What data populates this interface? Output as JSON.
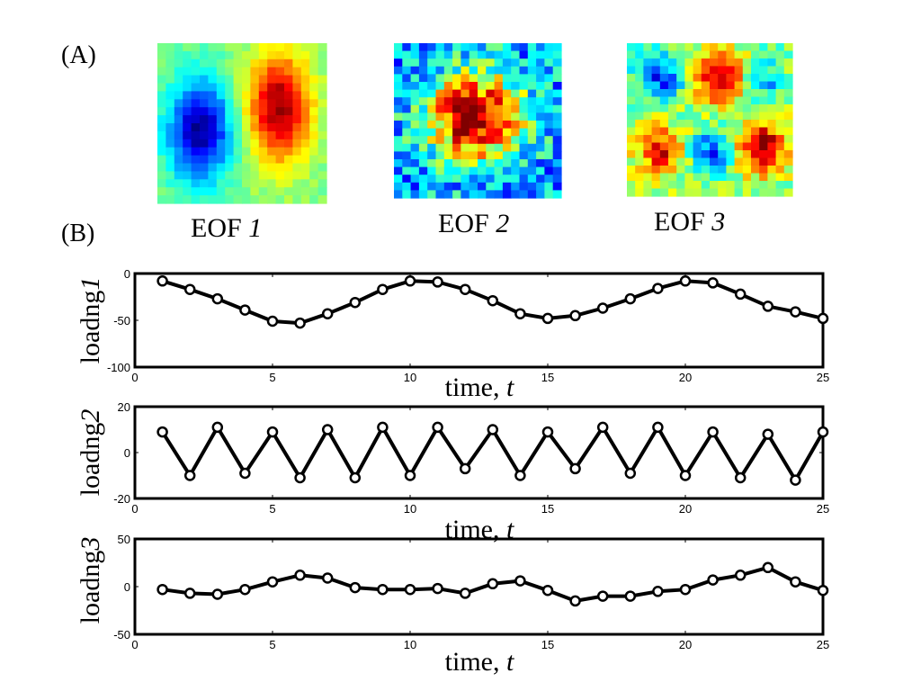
{
  "panel_a": {
    "label": "(A)",
    "maps": [
      {
        "name": "EOF",
        "index": "1",
        "grid": 20,
        "pattern": "dipole",
        "noise": 0.08
      },
      {
        "name": "EOF",
        "index": "2",
        "grid": 20,
        "pattern": "center-blob",
        "noise": 0.35
      },
      {
        "name": "EOF",
        "index": "3",
        "grid": 20,
        "pattern": "checker",
        "noise": 0.22
      }
    ],
    "colormap": "jet"
  },
  "panel_b": {
    "label": "(B)"
  },
  "chart_data": [
    {
      "type": "line",
      "ylabel": "loadng",
      "ylabel_index": "1",
      "xlabel": "time,",
      "xlabel_var": "t",
      "xlim": [
        0,
        25
      ],
      "ylim": [
        -100,
        0
      ],
      "xticks": [
        "0",
        "5",
        "10",
        "15",
        "20",
        "25"
      ],
      "yticks": [
        "-100",
        "-50",
        "0"
      ],
      "grid": false,
      "marker": "circle",
      "line_color": "#000000",
      "x": [
        1,
        2,
        3,
        4,
        5,
        6,
        7,
        8,
        9,
        10,
        11,
        12,
        13,
        14,
        15,
        16,
        17,
        18,
        19,
        20,
        21,
        22,
        23,
        24,
        25
      ],
      "values": [
        -8,
        -17,
        -27,
        -39,
        -51,
        -53,
        -43,
        -31,
        -17,
        -8,
        -9,
        -17,
        -29,
        -43,
        -48,
        -45,
        -37,
        -27,
        -16,
        -8,
        -10,
        -22,
        -35,
        -41,
        -48
      ]
    },
    {
      "type": "line",
      "ylabel": "loadng",
      "ylabel_index": "2",
      "xlabel": "time,",
      "xlabel_var": "t",
      "xlim": [
        0,
        25
      ],
      "ylim": [
        -20,
        20
      ],
      "xticks": [
        "0",
        "5",
        "10",
        "15",
        "20",
        "25"
      ],
      "yticks": [
        "-20",
        "0",
        "20"
      ],
      "grid": false,
      "marker": "circle",
      "line_color": "#000000",
      "x": [
        1,
        2,
        3,
        4,
        5,
        6,
        7,
        8,
        9,
        10,
        11,
        12,
        13,
        14,
        15,
        16,
        17,
        18,
        19,
        20,
        21,
        22,
        23,
        24,
        25
      ],
      "values": [
        9,
        -10,
        11,
        -9,
        9,
        -11,
        10,
        -11,
        11,
        -10,
        11,
        -7,
        10,
        -10,
        9,
        -7,
        11,
        -9,
        11,
        -10,
        9,
        -11,
        8,
        -12,
        9
      ]
    },
    {
      "type": "line",
      "ylabel": "loadng",
      "ylabel_index": "3",
      "xlabel": "time,",
      "xlabel_var": "t",
      "xlim": [
        0,
        25
      ],
      "ylim": [
        -50,
        50
      ],
      "xticks": [
        "0",
        "5",
        "10",
        "15",
        "20",
        "25"
      ],
      "yticks": [
        "-50",
        "0",
        "50"
      ],
      "grid": false,
      "marker": "circle",
      "line_color": "#000000",
      "x": [
        1,
        2,
        3,
        4,
        5,
        6,
        7,
        8,
        9,
        10,
        11,
        12,
        13,
        14,
        15,
        16,
        17,
        18,
        19,
        20,
        21,
        22,
        23,
        24,
        25
      ],
      "values": [
        -3,
        -7,
        -8,
        -3,
        5,
        12,
        9,
        -1,
        -3,
        -3,
        -2,
        -7,
        3,
        6,
        -4,
        -15,
        -10,
        -10,
        -5,
        -3,
        7,
        12,
        20,
        5,
        -4
      ]
    }
  ]
}
